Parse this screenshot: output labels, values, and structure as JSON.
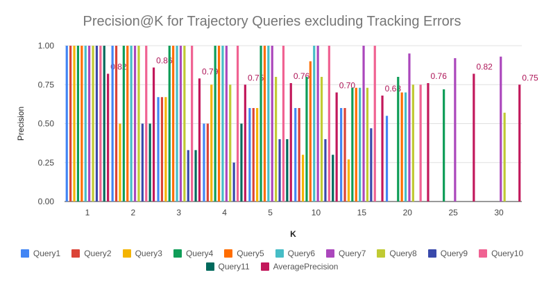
{
  "chart_data": {
    "type": "bar",
    "title": "Precision@K for Trajectory Queries excluding Tracking Errors",
    "xlabel": "K",
    "ylabel": "Precision",
    "ylim": [
      0,
      1
    ],
    "yticks": [
      "0.00",
      "0.25",
      "0.50",
      "0.75",
      "1.00"
    ],
    "grid": true,
    "legend_position": "bottom",
    "categories": [
      "1",
      "2",
      "3",
      "4",
      "5",
      "10",
      "15",
      "20",
      "25",
      "30"
    ],
    "series": [
      {
        "name": "Query1",
        "color": "#4285F4",
        "values": [
          1.0,
          1.0,
          0.67,
          0.5,
          0.6,
          0.6,
          0.6,
          0.55,
          0,
          0
        ]
      },
      {
        "name": "Query2",
        "color": "#DB4437",
        "values": [
          1.0,
          1.0,
          0.67,
          0.5,
          0.6,
          0.6,
          0.6,
          0,
          0,
          0
        ]
      },
      {
        "name": "Query3",
        "color": "#F4B400",
        "values": [
          1.0,
          0.5,
          0.67,
          0.75,
          0.6,
          0.3,
          0.27,
          0,
          0,
          0
        ]
      },
      {
        "name": "Query4",
        "color": "#0F9D58",
        "values": [
          1.0,
          1.0,
          1.0,
          1.0,
          1.0,
          0.8,
          0.73,
          0.8,
          0.72,
          0
        ]
      },
      {
        "name": "Query5",
        "color": "#FF6D00",
        "values": [
          1.0,
          1.0,
          1.0,
          1.0,
          1.0,
          0.9,
          0.73,
          0.7,
          0,
          0
        ]
      },
      {
        "name": "Query6",
        "color": "#46BDC6",
        "values": [
          1.0,
          1.0,
          1.0,
          1.0,
          1.0,
          1.0,
          0.73,
          0.7,
          0,
          0
        ]
      },
      {
        "name": "Query7",
        "color": "#AB47BC",
        "values": [
          1.0,
          1.0,
          1.0,
          1.0,
          1.0,
          1.0,
          1.0,
          0.95,
          0.92,
          0.93
        ]
      },
      {
        "name": "Query8",
        "color": "#C0CA33",
        "values": [
          1.0,
          1.0,
          1.0,
          0.75,
          0.8,
          0.8,
          0.73,
          0.75,
          0,
          0.57
        ]
      },
      {
        "name": "Query9",
        "color": "#3949AB",
        "values": [
          1.0,
          0.5,
          0.33,
          0.25,
          0.4,
          0.4,
          0.47,
          0,
          0,
          0
        ]
      },
      {
        "name": "Query10",
        "color": "#F06292",
        "values": [
          1.0,
          1.0,
          1.0,
          1.0,
          1.0,
          1.0,
          1.0,
          0.75,
          0,
          0
        ]
      },
      {
        "name": "Query11",
        "color": "#00695C",
        "values": [
          1.0,
          0.5,
          0.33,
          0.5,
          0.4,
          0.3,
          0,
          0,
          0,
          0
        ]
      },
      {
        "name": "AveragePrecision",
        "color": "#C2185B",
        "values": [
          0.82,
          0.86,
          0.79,
          0.75,
          0.76,
          0.7,
          0.68,
          0.76,
          0.82,
          0.75
        ]
      }
    ],
    "data_labels": [
      "0.82",
      "0.86",
      "0.79",
      "0.75",
      "0.76",
      "0.70",
      "0.68",
      "0.76",
      "0.82",
      "0.75"
    ],
    "data_label_color": "#AD1457"
  }
}
